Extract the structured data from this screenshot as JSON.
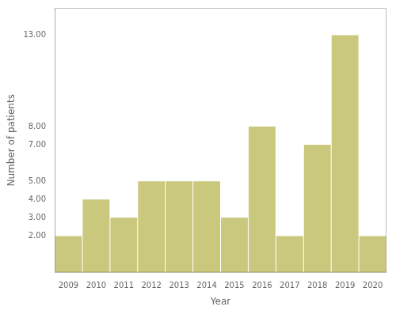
{
  "chart_data": {
    "type": "bar",
    "categories": [
      "2009",
      "2010",
      "2011",
      "2012",
      "2013",
      "2014",
      "2015",
      "2016",
      "2017",
      "2018",
      "2019",
      "2020"
    ],
    "values": [
      2,
      4,
      3,
      5,
      5,
      5,
      3,
      8,
      2,
      7,
      13,
      2
    ],
    "color": "#C9C87C",
    "xlabel": "Year",
    "ylabel": "Number of patients",
    "ylim": [
      0,
      14.5
    ],
    "yticks": [
      {
        "value": 2,
        "label": "2.00"
      },
      {
        "value": 3,
        "label": "3.00"
      },
      {
        "value": 4,
        "label": "4.00"
      },
      {
        "value": 5,
        "label": "5.00"
      },
      {
        "value": 7,
        "label": "7.00"
      },
      {
        "value": 8,
        "label": "8.00"
      },
      {
        "value": 13,
        "label": "13.00"
      }
    ],
    "grid": false
  }
}
